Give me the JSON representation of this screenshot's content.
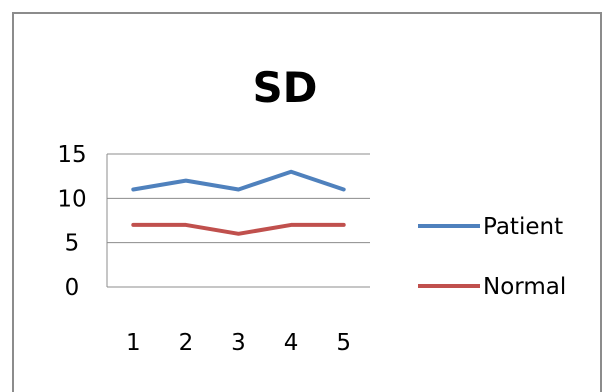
{
  "chart_data": {
    "type": "line",
    "title": "SD",
    "xlabel": "",
    "ylabel": "",
    "categories": [
      "1",
      "2",
      "3",
      "4",
      "5"
    ],
    "ylim": [
      0,
      15
    ],
    "yticks": [
      "0",
      "5",
      "10",
      "15"
    ],
    "grid": true,
    "legend_position": "right",
    "series": [
      {
        "name": "Patient",
        "color": "#4f81bd",
        "values": [
          11,
          12,
          11,
          13,
          11
        ]
      },
      {
        "name": "Normal",
        "color": "#c0504d",
        "values": [
          7,
          7,
          6,
          7,
          7
        ]
      }
    ]
  }
}
